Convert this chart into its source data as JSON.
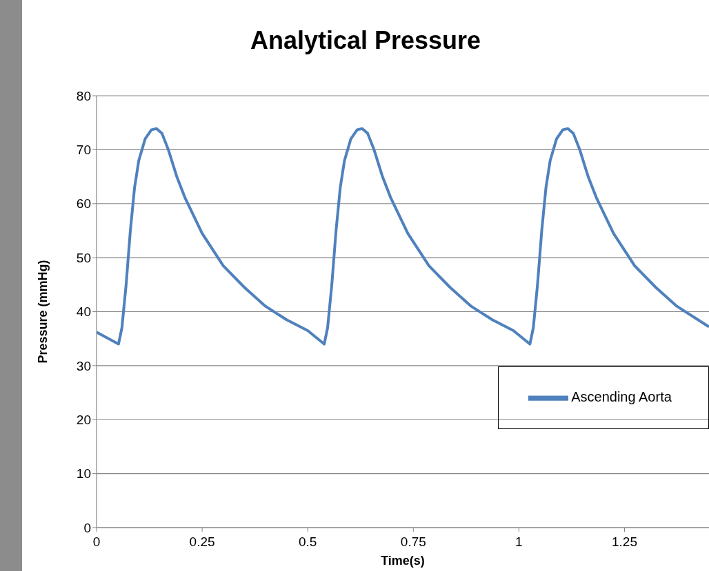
{
  "chart_data": {
    "type": "line",
    "title": "Analytical Pressure",
    "xlabel": "Time(s)",
    "ylabel": "Pressure (mmHg)",
    "x": [
      0,
      0.052,
      0.06,
      0.07,
      0.08,
      0.09,
      0.1,
      0.115,
      0.13,
      0.142,
      0.155,
      0.17,
      0.19,
      0.21,
      0.25,
      0.3,
      0.35,
      0.4,
      0.45,
      0.5,
      0.539,
      0.547,
      0.557,
      0.567,
      0.577,
      0.587,
      0.602,
      0.617,
      0.629,
      0.642,
      0.657,
      0.677,
      0.697,
      0.737,
      0.787,
      0.837,
      0.887,
      0.937,
      0.987,
      1.026,
      1.034,
      1.044,
      1.054,
      1.064,
      1.074,
      1.089,
      1.104,
      1.116,
      1.129,
      1.144,
      1.164,
      1.184,
      1.224,
      1.274,
      1.324,
      1.374,
      1.424,
      1.45
    ],
    "series": [
      {
        "name": "Ascending Aorta",
        "color": "#4f81bd",
        "values": [
          36.2,
          34,
          37,
          45,
          55,
          63,
          68,
          72,
          73.7,
          73.9,
          73,
          70,
          65,
          61,
          54.5,
          48.5,
          44.5,
          41,
          38.5,
          36.5,
          34,
          37,
          45,
          55,
          63,
          68,
          72,
          73.7,
          73.9,
          73,
          70,
          65,
          61,
          54.5,
          48.5,
          44.5,
          41,
          38.5,
          36.5,
          34,
          37,
          45,
          55,
          63,
          68,
          72,
          73.7,
          73.9,
          73,
          70,
          65,
          61,
          54.5,
          48.5,
          44.5,
          41,
          38.5,
          37.2
        ]
      }
    ],
    "xlim": [
      0,
      1.45
    ],
    "xticks": [
      0,
      0.25,
      0.5,
      0.75,
      1,
      1.25
    ],
    "ylim": [
      0,
      80
    ],
    "yticks": [
      0,
      10,
      20,
      30,
      40,
      50,
      60,
      70,
      80
    ],
    "grid": "y",
    "legend": "bottom right",
    "marker": "none",
    "line_style": "solid"
  }
}
